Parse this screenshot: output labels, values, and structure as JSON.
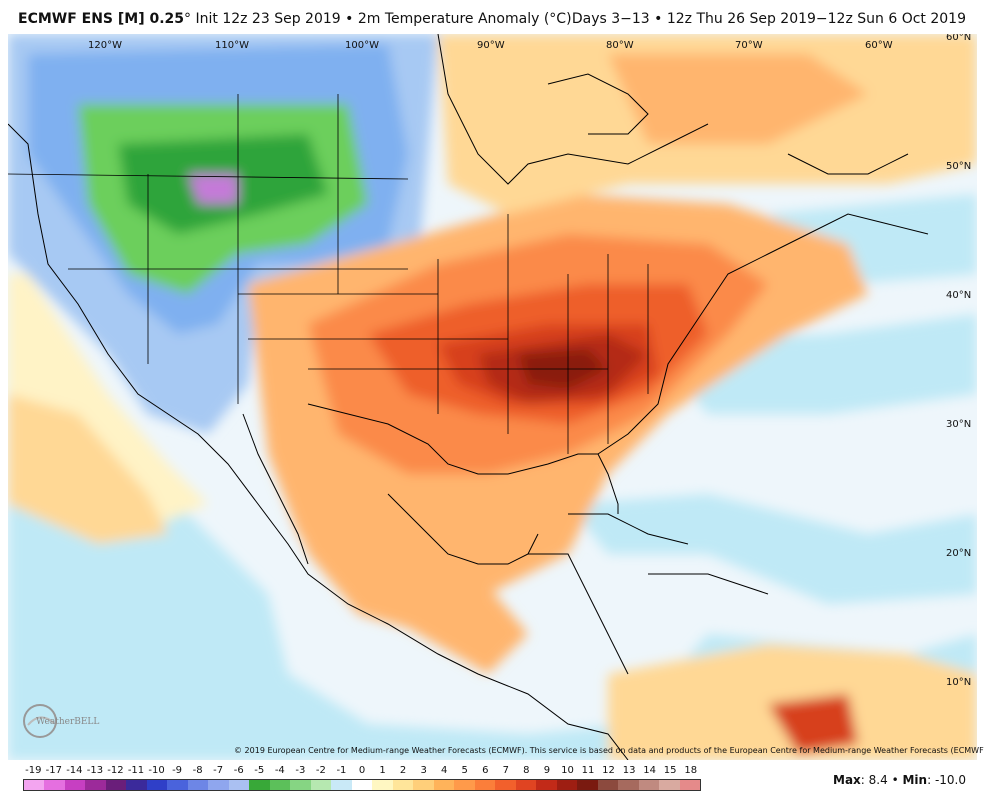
{
  "header": {
    "model": "ECMWF ENS [M] 0.25",
    "init": "Init 12z 23 Sep 2019",
    "sep1": "•",
    "field": "2m Temperature Anomaly (",
    "unit": "°C)",
    "range": "Days 3−13 • 12z Thu 26 Sep 2019−12z Sun 6 Oct 2019"
  },
  "longitude_labels": [
    "120°W",
    "110°W",
    "100°W",
    "90°W",
    "80°W",
    "70°W",
    "60°W"
  ],
  "latitude_labels": [
    "60°N",
    "50°N",
    "40°N",
    "30°N",
    "20°N",
    "10°N"
  ],
  "copyright": "© 2019 European Centre for Medium-range Weather Forecasts (ECMWF). This service is based on data and products of the European Centre for Medium-range Weather Forecasts (ECMWF).",
  "colorbar": {
    "labels": [
      "-19",
      "-17",
      "-14",
      "-13",
      "-12",
      "-11",
      "-10",
      "-9",
      "-8",
      "-7",
      "-6",
      "-5",
      "-4",
      "-3",
      "-2",
      "-1",
      "0",
      "1",
      "2",
      "3",
      "4",
      "5",
      "6",
      "7",
      "8",
      "9",
      "10",
      "11",
      "12",
      "13",
      "14",
      "15",
      "18"
    ],
    "colors": [
      "#f3a5f0",
      "#e56fe0",
      "#c73fc2",
      "#9c2a9a",
      "#6a1e7a",
      "#3b2a9b",
      "#2f3fc8",
      "#4a63dc",
      "#6d86e6",
      "#8fa6ee",
      "#aac0f2",
      "#38a838",
      "#5cc05a",
      "#86d583",
      "#b6e8b0",
      "#c9e9f7",
      "#ffffff",
      "#fff7c2",
      "#ffe59a",
      "#ffcf7a",
      "#ffb35a",
      "#ff9a4a",
      "#fb7e3a",
      "#f2602c",
      "#e04422",
      "#c22a18",
      "#9e1e12",
      "#7a1a10",
      "#8c4a3e",
      "#a66a5e",
      "#c08a80",
      "#d9aaa0",
      "#e58a8a"
    ],
    "palette": [
      "#c47ad8",
      "#5a4ad0",
      "#6a8fe4",
      "#7fb0f0",
      "#a7c9f3",
      "#2fa43a",
      "#6ccf5c",
      "#bfe9f6",
      "#eef6fb",
      "#fff3c6",
      "#ffd895",
      "#ffb56e",
      "#fb8a48",
      "#ee5e2c",
      "#d7401e",
      "#b42c16",
      "#8a1e10"
    ]
  },
  "stats": {
    "max_label": "Max",
    "max_value": ": 8.4",
    "sep": "•",
    "min_label": "Min",
    "min_value": ": -10.0"
  },
  "logo": {
    "text": "WeatherBELL"
  }
}
